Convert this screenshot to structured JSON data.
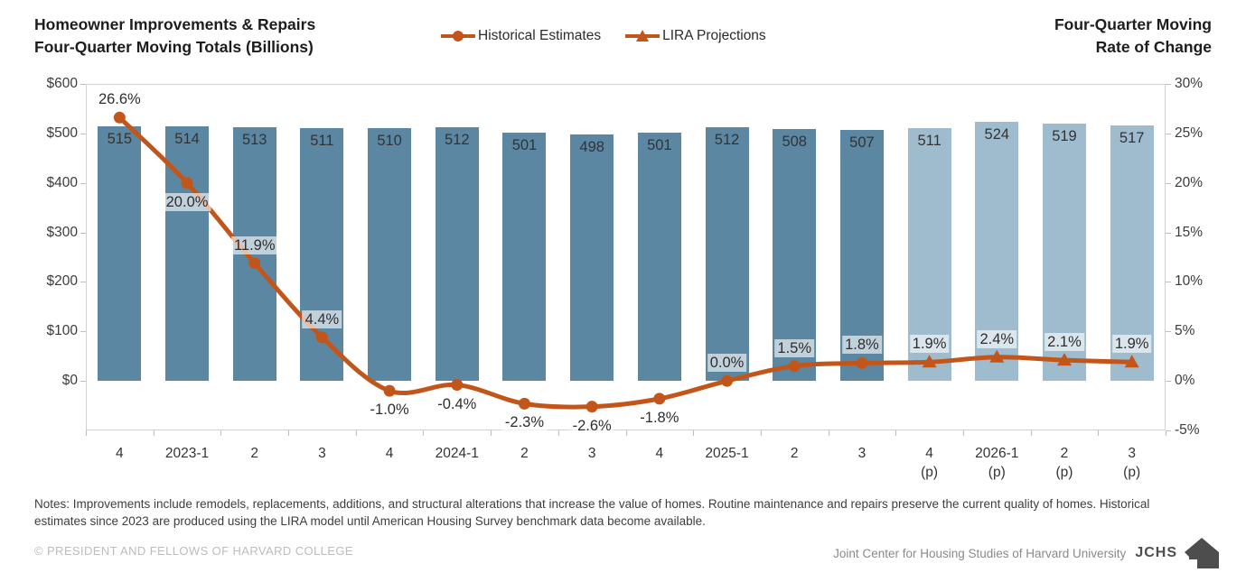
{
  "header": {
    "title_left_line1": "Homeowner Improvements & Repairs",
    "title_left_line2": "Four-Quarter Moving Totals (Billions)",
    "title_right_line1": "Four-Quarter Moving",
    "title_right_line2": "Rate of Change"
  },
  "chart_data": {
    "type": "bar",
    "subtype": "combo-bar-line",
    "categories": [
      "4",
      "2023-1",
      "2",
      "3",
      "4",
      "2024-1",
      "2",
      "3",
      "4",
      "2025-1",
      "2",
      "3",
      "4",
      "2026-1",
      "2",
      "3"
    ],
    "projection_start_index": 12,
    "projection_suffix": "(p)",
    "bar_series": {
      "name": "Homeowner Improvements & Repairs, Four-Quarter Moving Totals (Billions)",
      "axis": "left",
      "values": [
        515,
        514,
        513,
        511,
        510,
        512,
        501,
        498,
        501,
        512,
        508,
        507,
        511,
        524,
        519,
        517
      ],
      "historical_color": "#5B87A3",
      "projection_color": "#9FBCCE"
    },
    "line_series": {
      "name": "Four-Quarter Moving Rate of Change",
      "axis": "right",
      "values_pct": [
        26.6,
        20.0,
        11.9,
        4.4,
        -1.0,
        -0.4,
        -2.3,
        -2.6,
        -1.8,
        0.0,
        1.5,
        1.8,
        1.9,
        2.4,
        2.1,
        1.9
      ],
      "labels": [
        "26.6%",
        "20.0%",
        "11.9%",
        "4.4%",
        "-1.0%",
        "-0.4%",
        "-2.3%",
        "-2.6%",
        "-1.8%",
        "0.0%",
        "1.5%",
        "1.8%",
        "1.9%",
        "2.4%",
        "2.1%",
        "1.9%"
      ],
      "label_side": [
        "above",
        "below",
        "above",
        "above",
        "below",
        "below",
        "below",
        "below",
        "below",
        "above",
        "above",
        "above",
        "above",
        "above",
        "above",
        "above"
      ],
      "color": "#C2561A",
      "historical_marker": "circle",
      "projection_marker": "triangle"
    },
    "left_axis": {
      "tick_labels": [
        "$600",
        "$500",
        "$400",
        "$300",
        "$200",
        "$100",
        "$0"
      ],
      "max": 600,
      "min": -100,
      "tick_step": 100
    },
    "right_axis": {
      "tick_labels": [
        "30%",
        "25%",
        "20%",
        "15%",
        "10%",
        "5%",
        "0%",
        "-5%"
      ],
      "max": 30,
      "min": -5,
      "tick_step": 5
    },
    "legend": [
      {
        "label": "Historical Estimates",
        "marker": "circle"
      },
      {
        "label": "LIRA Projections",
        "marker": "triangle"
      }
    ],
    "legend_position": "top-center",
    "grid": false
  },
  "notes": {
    "text": "Notes: Improvements include remodels, replacements, additions, and structural alterations that increase the value of homes. Routine maintenance and repairs preserve the current quality of homes. Historical estimates since 2023 are produced using the LIRA model until American Housing Survey benchmark data become available."
  },
  "footer": {
    "copyright": "© PRESIDENT AND FELLOWS OF HARVARD COLLEGE",
    "organization": "Joint Center for Housing Studies of Harvard University",
    "logo_text": "JCHS"
  }
}
